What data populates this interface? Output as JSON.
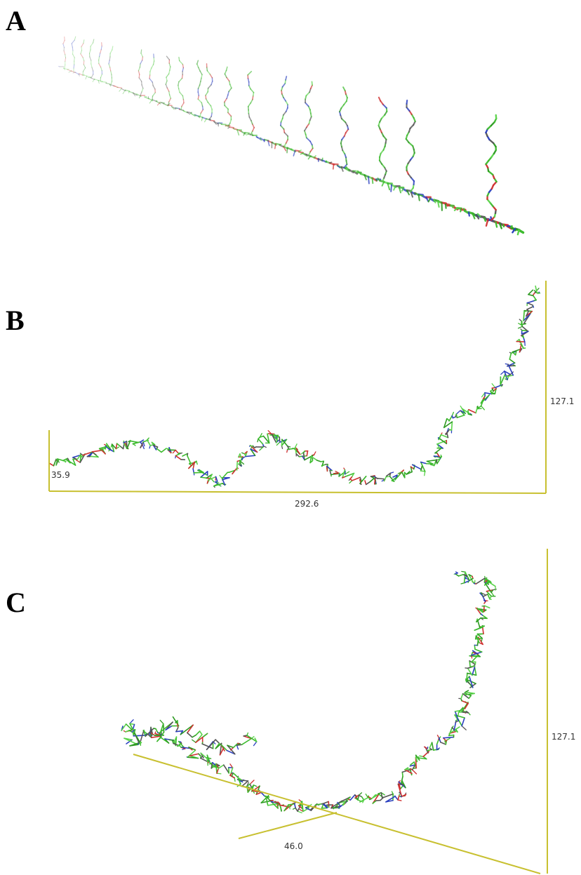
{
  "panels": [
    {
      "label": "A"
    },
    {
      "label": "B",
      "dimensions": [
        "35.9",
        "292.6",
        "127.1"
      ]
    },
    {
      "label": "C",
      "dimensions": [
        "46.0",
        "127.1"
      ]
    }
  ]
}
